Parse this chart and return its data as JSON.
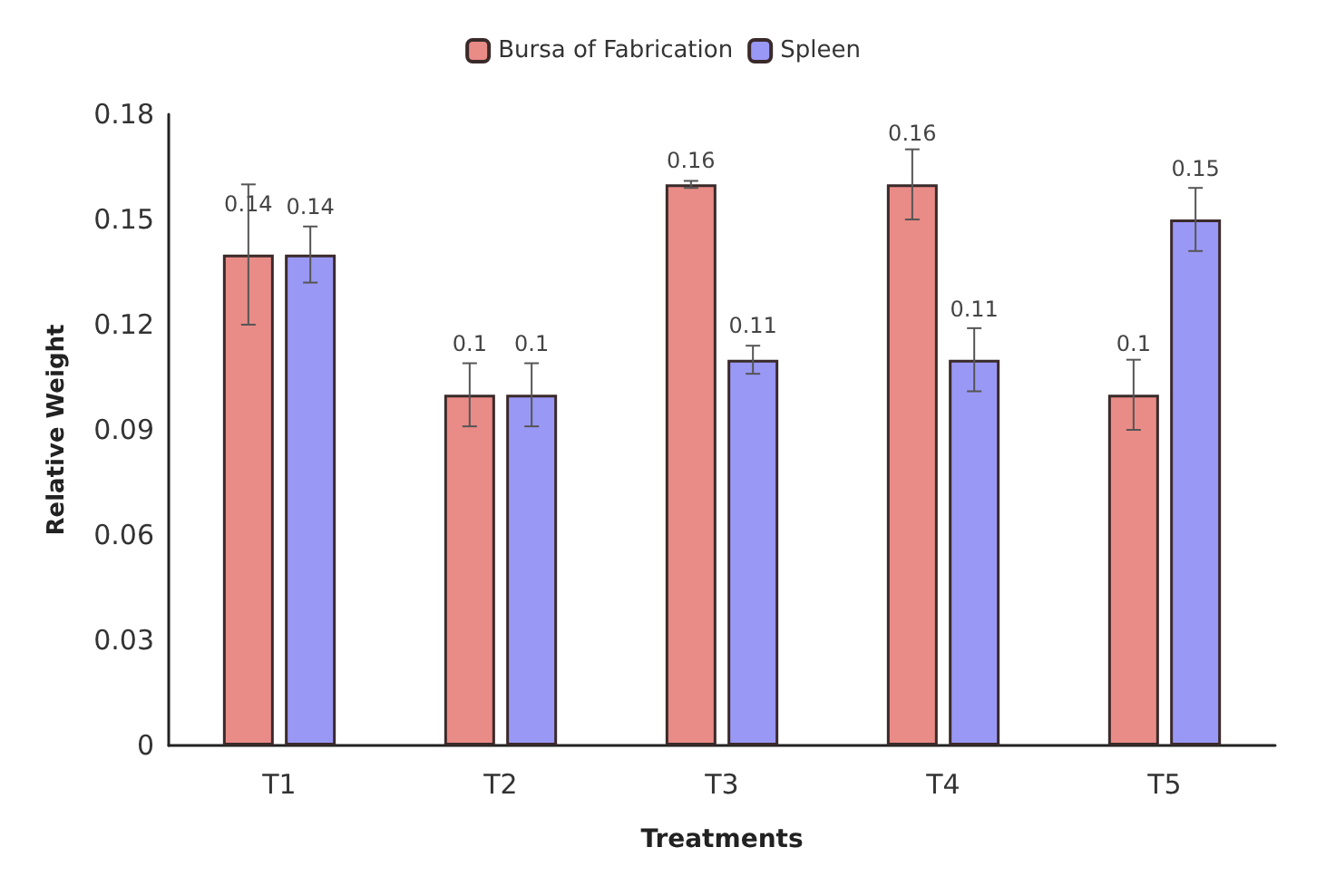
{
  "chart_data": {
    "type": "bar",
    "xlabel": "Treatments",
    "ylabel": "Relative Weight",
    "categories": [
      "T1",
      "T2",
      "T3",
      "T4",
      "T5"
    ],
    "series": [
      {
        "name": "Bursa of Fabrication",
        "color": "#e98b87",
        "values": [
          0.14,
          0.1,
          0.16,
          0.16,
          0.1
        ],
        "errors": [
          0.02,
          0.009,
          0.001,
          0.01,
          0.01
        ]
      },
      {
        "name": "Spleen",
        "color": "#9a98f5",
        "values": [
          0.14,
          0.1,
          0.11,
          0.11,
          0.15
        ],
        "errors": [
          0.008,
          0.009,
          0.004,
          0.009,
          0.009
        ]
      }
    ],
    "ylim": [
      0,
      0.18
    ],
    "yticks": [
      0,
      0.03,
      0.06,
      0.09,
      0.12,
      0.15,
      0.18
    ],
    "data_labels": true,
    "legend": "top",
    "grid": false
  }
}
